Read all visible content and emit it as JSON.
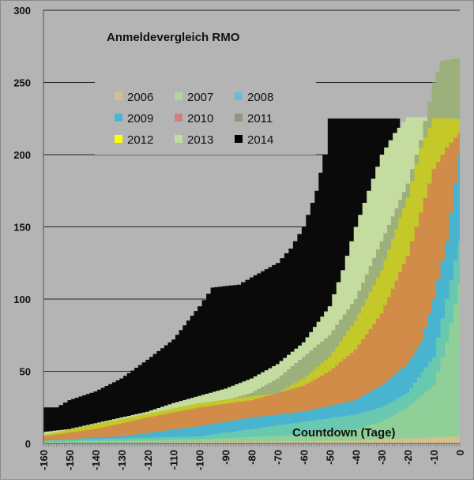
{
  "chart_data": {
    "type": "area",
    "title": "Anmeldevergleich RMO",
    "xlabel": "Countdown (Tage)",
    "ylabel": "",
    "xlim": [
      -160,
      0
    ],
    "ylim": [
      0,
      300
    ],
    "yticks": [
      "0",
      "50",
      "100",
      "150",
      "200",
      "250",
      "300"
    ],
    "xticks": [
      "-160",
      "-150",
      "-140",
      "-130",
      "-120",
      "-110",
      "-100",
      "-90",
      "-80",
      "-70",
      "-60",
      "-50",
      "-40",
      "-30",
      "-20",
      "-10",
      "0"
    ],
    "grid": "horizontal",
    "legend_position": "top-left",
    "series": [
      {
        "name": "2014",
        "color": "#0a0a0a",
        "points": [
          [
            -160,
            25
          ],
          [
            -155,
            25
          ],
          [
            -150,
            30
          ],
          [
            -140,
            36
          ],
          [
            -130,
            45
          ],
          [
            -120,
            58
          ],
          [
            -110,
            72
          ],
          [
            -100,
            95
          ],
          [
            -95,
            108
          ],
          [
            -85,
            110
          ],
          [
            -80,
            115
          ],
          [
            -70,
            125
          ],
          [
            -65,
            135
          ],
          [
            -60,
            150
          ],
          [
            -55,
            175
          ],
          [
            -52,
            200
          ],
          [
            -50,
            225
          ],
          [
            -23,
            225
          ]
        ]
      },
      {
        "name": "2013",
        "color": "#c4dca0",
        "points": [
          [
            -160,
            8
          ],
          [
            -150,
            10
          ],
          [
            -140,
            14
          ],
          [
            -130,
            18
          ],
          [
            -120,
            22
          ],
          [
            -110,
            28
          ],
          [
            -100,
            33
          ],
          [
            -90,
            38
          ],
          [
            -80,
            45
          ],
          [
            -70,
            55
          ],
          [
            -60,
            70
          ],
          [
            -50,
            95
          ],
          [
            -45,
            120
          ],
          [
            -40,
            150
          ],
          [
            -35,
            175
          ],
          [
            -30,
            200
          ],
          [
            -25,
            215
          ],
          [
            -20,
            226
          ],
          [
            -10,
            226
          ],
          [
            0,
            225
          ]
        ]
      },
      {
        "name": "2011",
        "color": "#9cb07c",
        "points": [
          [
            -160,
            5
          ],
          [
            -140,
            10
          ],
          [
            -120,
            17
          ],
          [
            -100,
            25
          ],
          [
            -80,
            35
          ],
          [
            -70,
            45
          ],
          [
            -60,
            60
          ],
          [
            -50,
            75
          ],
          [
            -40,
            100
          ],
          [
            -30,
            140
          ],
          [
            -20,
            180
          ],
          [
            -15,
            210
          ],
          [
            -10,
            250
          ],
          [
            -7,
            265
          ],
          [
            0,
            267
          ]
        ]
      },
      {
        "name": "2012",
        "color": "#c4c828",
        "points": [
          [
            -160,
            6
          ],
          [
            -130,
            17
          ],
          [
            -100,
            28
          ],
          [
            -70,
            35
          ],
          [
            -60,
            45
          ],
          [
            -50,
            60
          ],
          [
            -40,
            85
          ],
          [
            -30,
            120
          ],
          [
            -20,
            170
          ],
          [
            -15,
            205
          ],
          [
            -10,
            225
          ],
          [
            0,
            225
          ]
        ]
      },
      {
        "name": "2010",
        "color": "#d08c48",
        "points": [
          [
            -160,
            5
          ],
          [
            -140,
            10
          ],
          [
            -120,
            18
          ],
          [
            -100,
            25
          ],
          [
            -80,
            30
          ],
          [
            -70,
            35
          ],
          [
            -60,
            40
          ],
          [
            -50,
            50
          ],
          [
            -40,
            65
          ],
          [
            -30,
            90
          ],
          [
            -20,
            130
          ],
          [
            -15,
            160
          ],
          [
            -10,
            190
          ],
          [
            -5,
            205
          ],
          [
            0,
            215
          ]
        ]
      },
      {
        "name": "2009",
        "color": "#48b4d0",
        "points": [
          [
            -160,
            2
          ],
          [
            -130,
            5
          ],
          [
            -100,
            12
          ],
          [
            -90,
            15
          ],
          [
            -80,
            18
          ],
          [
            -60,
            22
          ],
          [
            -40,
            30
          ],
          [
            -30,
            40
          ],
          [
            -20,
            55
          ],
          [
            -15,
            70
          ],
          [
            -10,
            100
          ],
          [
            -5,
            140
          ],
          [
            0,
            200
          ]
        ]
      },
      {
        "name": "2008",
        "color": "#68c8b0",
        "points": [
          [
            -160,
            2
          ],
          [
            -100,
            5
          ],
          [
            -80,
            10
          ],
          [
            -60,
            15
          ],
          [
            -40,
            20
          ],
          [
            -30,
            25
          ],
          [
            -20,
            35
          ],
          [
            -10,
            60
          ],
          [
            -5,
            100
          ],
          [
            0,
            140
          ]
        ]
      },
      {
        "name": "2007",
        "color": "#90d098",
        "points": [
          [
            -160,
            1
          ],
          [
            -100,
            3
          ],
          [
            -60,
            6
          ],
          [
            -40,
            10
          ],
          [
            -30,
            15
          ],
          [
            -20,
            25
          ],
          [
            -10,
            40
          ],
          [
            -5,
            70
          ],
          [
            0,
            110
          ]
        ]
      },
      {
        "name": "2006",
        "color": "#d4c08c",
        "points": [
          [
            -160,
            0
          ],
          [
            -40,
            2
          ],
          [
            0,
            5
          ]
        ]
      }
    ],
    "legend": [
      "2006",
      "2007",
      "2008",
      "2009",
      "2010",
      "2011",
      "2012",
      "2013",
      "2014"
    ],
    "legend_colors": [
      "#d4c08c",
      "#b4d49c",
      "#6cbcd8",
      "#48b4d8",
      "#d08080",
      "#8c9a7c",
      "#ffff00",
      "#c4dca0",
      "#000000"
    ]
  }
}
